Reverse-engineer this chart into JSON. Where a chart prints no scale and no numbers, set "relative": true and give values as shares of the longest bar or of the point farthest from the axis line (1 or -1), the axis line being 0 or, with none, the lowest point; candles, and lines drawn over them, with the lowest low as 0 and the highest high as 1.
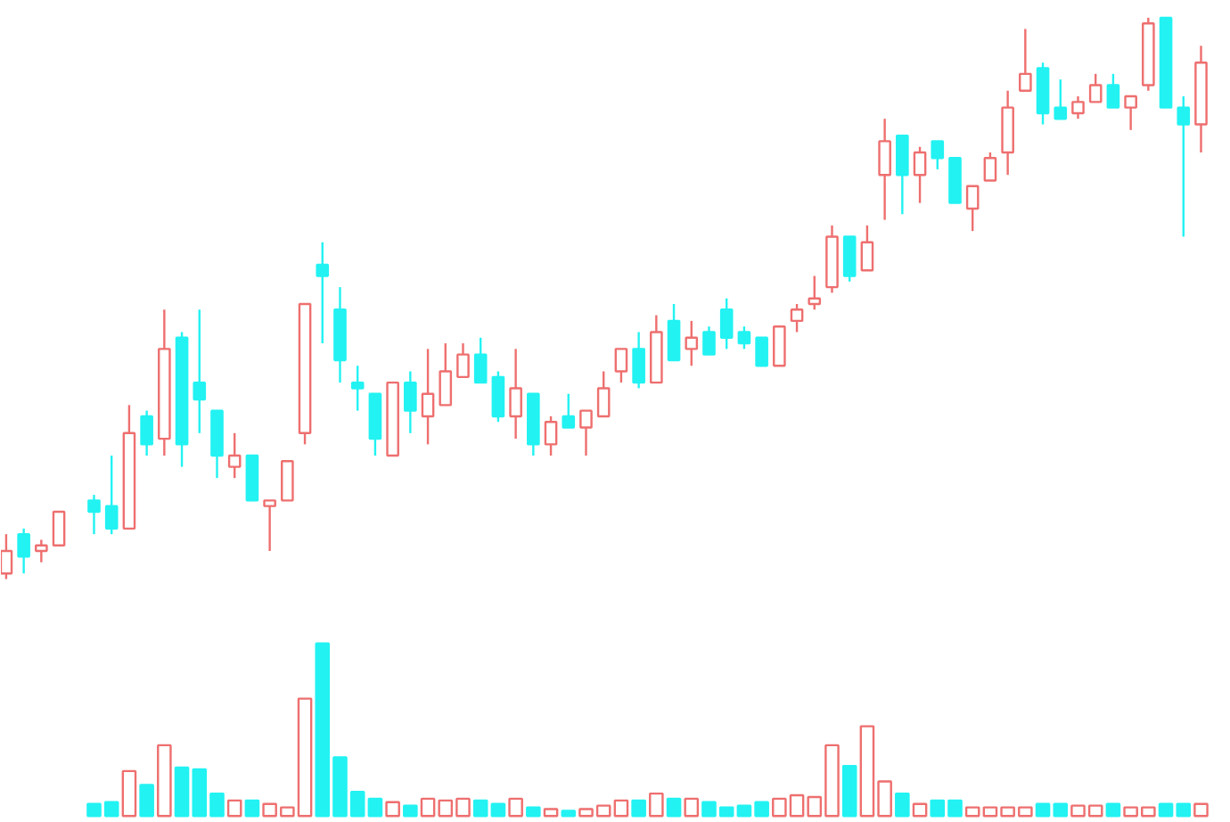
{
  "chart_data": [
    {
      "type": "candlestick",
      "relative": true,
      "categories": [
        null,
        null,
        null,
        null,
        null,
        null,
        null,
        null,
        null,
        null,
        null,
        null,
        null,
        null,
        null,
        null,
        null,
        null,
        null,
        null,
        null,
        null,
        null,
        null,
        null,
        null,
        null,
        null,
        null,
        null,
        null,
        null,
        null,
        null,
        null,
        null,
        null,
        null,
        null,
        null,
        null,
        null,
        null,
        null,
        null,
        null,
        null,
        null,
        null,
        null,
        null,
        null,
        null,
        null,
        null,
        null,
        null,
        null,
        null,
        null,
        null,
        null,
        null,
        null,
        null,
        null,
        null,
        null,
        null
      ],
      "ohlc": [
        [
          0.01,
          0.08,
          0,
          0.05
        ],
        [
          0.08,
          0.09,
          0.01,
          0.04
        ],
        [
          0.05,
          0.07,
          0.03,
          0.06
        ],
        [
          0.06,
          0.12,
          0.06,
          0.12
        ],
        null,
        [
          0.14,
          0.15,
          0.08,
          0.12
        ],
        [
          0.13,
          0.22,
          0.08,
          0.09
        ],
        [
          0.09,
          0.31,
          0.09,
          0.26
        ],
        [
          0.29,
          0.3,
          0.22,
          0.24
        ],
        [
          0.25,
          0.48,
          0.22,
          0.41
        ],
        [
          0.43,
          0.44,
          0.2,
          0.24
        ],
        [
          0.35,
          0.48,
          0.26,
          0.32
        ],
        [
          0.3,
          0.3,
          0.18,
          0.22
        ],
        [
          0.2,
          0.26,
          0.18,
          0.22
        ],
        [
          0.22,
          0.22,
          0.14,
          0.14
        ],
        [
          0.13,
          0.14,
          0.05,
          0.14
        ],
        [
          0.14,
          0.21,
          0.14,
          0.21
        ],
        [
          0.26,
          0.49,
          0.24,
          0.49
        ],
        [
          0.56,
          0.6,
          0.42,
          0.54
        ],
        [
          0.48,
          0.52,
          0.35,
          0.39
        ],
        [
          0.35,
          0.38,
          0.3,
          0.34
        ],
        [
          0.33,
          0.33,
          0.22,
          0.25
        ],
        [
          0.22,
          0.35,
          0.22,
          0.35
        ],
        [
          0.35,
          0.37,
          0.26,
          0.3
        ],
        [
          0.29,
          0.41,
          0.24,
          0.33
        ],
        [
          0.31,
          0.42,
          0.31,
          0.37
        ],
        [
          0.36,
          0.42,
          0.36,
          0.4
        ],
        [
          0.4,
          0.43,
          0.35,
          0.35
        ],
        [
          0.36,
          0.37,
          0.28,
          0.29
        ],
        [
          0.29,
          0.41,
          0.25,
          0.34
        ],
        [
          0.33,
          0.33,
          0.22,
          0.24
        ],
        [
          0.24,
          0.29,
          0.22,
          0.28
        ],
        [
          0.29,
          0.33,
          0.27,
          0.27
        ],
        [
          0.27,
          0.3,
          0.22,
          0.3
        ],
        [
          0.29,
          0.37,
          0.29,
          0.34
        ],
        [
          0.37,
          0.41,
          0.35,
          0.41
        ],
        [
          0.41,
          0.44,
          0.34,
          0.35
        ],
        [
          0.35,
          0.47,
          0.35,
          0.44
        ],
        [
          0.46,
          0.49,
          0.39,
          0.39
        ],
        [
          0.41,
          0.46,
          0.38,
          0.43
        ],
        [
          0.44,
          0.45,
          0.4,
          0.4
        ],
        [
          0.48,
          0.5,
          0.41,
          0.43
        ],
        [
          0.44,
          0.45,
          0.41,
          0.42
        ],
        [
          0.43,
          0.43,
          0.38,
          0.38
        ],
        [
          0.38,
          0.45,
          0.38,
          0.45
        ],
        [
          0.46,
          0.49,
          0.44,
          0.48
        ],
        [
          0.49,
          0.54,
          0.48,
          0.5
        ],
        [
          0.52,
          0.63,
          0.51,
          0.61
        ],
        [
          0.61,
          0.61,
          0.53,
          0.54
        ],
        [
          0.55,
          0.63,
          0.55,
          0.6
        ],
        [
          0.72,
          0.82,
          0.64,
          0.78
        ],
        [
          0.79,
          0.79,
          0.65,
          0.72
        ],
        [
          0.72,
          0.77,
          0.67,
          0.76
        ],
        [
          0.78,
          0.78,
          0.73,
          0.75
        ],
        [
          0.75,
          0.75,
          0.67,
          0.67
        ],
        [
          0.66,
          0.7,
          0.62,
          0.7
        ],
        [
          0.71,
          0.76,
          0.71,
          0.75
        ],
        [
          0.76,
          0.87,
          0.72,
          0.84
        ],
        [
          0.87,
          0.98,
          0.87,
          0.9
        ],
        [
          0.91,
          0.92,
          0.81,
          0.83
        ],
        [
          0.84,
          0.89,
          0.82,
          0.82
        ],
        [
          0.83,
          0.86,
          0.82,
          0.85
        ],
        [
          0.85,
          0.9,
          0.85,
          0.88
        ],
        [
          0.88,
          0.9,
          0.84,
          0.84
        ],
        [
          0.84,
          0.86,
          0.8,
          0.86
        ],
        [
          0.88,
          1,
          0.87,
          0.99
        ],
        [
          1,
          1,
          0.84,
          0.84
        ],
        [
          0.84,
          0.86,
          0.61,
          0.81
        ],
        [
          0.81,
          0.95,
          0.76,
          0.92
        ]
      ],
      "colors": [
        "#ee6f6f",
        "#22f2f2",
        "#ee6f6f",
        "#ee6f6f",
        "#ee6f6f",
        "#22f2f2",
        "#22f2f2",
        "#ee6f6f",
        "#22f2f2",
        "#ee6f6f",
        "#22f2f2",
        "#22f2f2",
        "#22f2f2",
        "#ee6f6f",
        "#22f2f2",
        "#ee6f6f",
        "#ee6f6f",
        "#ee6f6f",
        "#22f2f2",
        "#22f2f2",
        "#22f2f2",
        "#22f2f2",
        "#ee6f6f",
        "#22f2f2",
        "#ee6f6f",
        "#ee6f6f",
        "#ee6f6f",
        "#22f2f2",
        "#22f2f2",
        "#ee6f6f",
        "#22f2f2",
        "#ee6f6f",
        "#22f2f2",
        "#ee6f6f",
        "#ee6f6f",
        "#ee6f6f",
        "#22f2f2",
        "#ee6f6f",
        "#22f2f2",
        "#ee6f6f",
        "#22f2f2",
        "#22f2f2",
        "#22f2f2",
        "#22f2f2",
        "#ee6f6f",
        "#ee6f6f",
        "#ee6f6f",
        "#ee6f6f",
        "#22f2f2",
        "#ee6f6f",
        "#ee6f6f",
        "#22f2f2",
        "#ee6f6f",
        "#22f2f2",
        "#22f2f2",
        "#ee6f6f",
        "#ee6f6f",
        "#ee6f6f",
        "#ee6f6f",
        "#22f2f2",
        "#22f2f2",
        "#ee6f6f",
        "#ee6f6f",
        "#22f2f2",
        "#ee6f6f",
        "#ee6f6f",
        "#22f2f2",
        "#22f2f2",
        "#ee6f6f"
      ]
    },
    {
      "type": "bar",
      "relative": true,
      "categories": [
        null,
        null,
        null,
        null,
        null,
        null,
        null,
        null,
        null,
        null,
        null,
        null,
        null,
        null,
        null,
        null,
        null,
        null,
        null,
        null,
        null,
        null,
        null,
        null,
        null,
        null,
        null,
        null,
        null,
        null,
        null,
        null,
        null,
        null,
        null,
        null,
        null,
        null,
        null,
        null,
        null,
        null,
        null,
        null,
        null,
        null,
        null,
        null,
        null,
        null,
        null,
        null,
        null,
        null,
        null,
        null,
        null,
        null,
        null,
        null,
        null,
        null,
        null,
        null,
        null,
        null,
        null,
        null,
        null
      ],
      "values": [
        null,
        null,
        null,
        null,
        null,
        0.07,
        0.08,
        0.26,
        0.18,
        0.41,
        0.28,
        0.27,
        0.13,
        0.09,
        0.09,
        0.07,
        0.05,
        0.68,
        1,
        0.34,
        0.14,
        0.1,
        0.08,
        0.06,
        0.1,
        0.09,
        0.1,
        0.09,
        0.07,
        0.1,
        0.05,
        0.04,
        0.03,
        0.04,
        0.06,
        0.09,
        0.09,
        0.13,
        0.1,
        0.1,
        0.08,
        0.05,
        0.06,
        0.08,
        0.1,
        0.12,
        0.11,
        0.41,
        0.29,
        0.52,
        0.2,
        0.13,
        0.07,
        0.09,
        0.09,
        0.05,
        0.05,
        0.05,
        0.05,
        0.07,
        0.07,
        0.06,
        0.06,
        0.07,
        0.05,
        0.05,
        0.07,
        0.07,
        0.07
      ],
      "colors": [
        "#ee6f6f",
        "#22f2f2",
        "#ee6f6f",
        "#ee6f6f",
        "#ee6f6f",
        "#22f2f2",
        "#22f2f2",
        "#ee6f6f",
        "#22f2f2",
        "#ee6f6f",
        "#22f2f2",
        "#22f2f2",
        "#22f2f2",
        "#ee6f6f",
        "#22f2f2",
        "#ee6f6f",
        "#ee6f6f",
        "#ee6f6f",
        "#22f2f2",
        "#22f2f2",
        "#22f2f2",
        "#22f2f2",
        "#ee6f6f",
        "#22f2f2",
        "#ee6f6f",
        "#ee6f6f",
        "#ee6f6f",
        "#22f2f2",
        "#22f2f2",
        "#ee6f6f",
        "#22f2f2",
        "#ee6f6f",
        "#22f2f2",
        "#ee6f6f",
        "#ee6f6f",
        "#ee6f6f",
        "#22f2f2",
        "#ee6f6f",
        "#22f2f2",
        "#ee6f6f",
        "#22f2f2",
        "#22f2f2",
        "#22f2f2",
        "#22f2f2",
        "#ee6f6f",
        "#ee6f6f",
        "#ee6f6f",
        "#ee6f6f",
        "#22f2f2",
        "#ee6f6f",
        "#ee6f6f",
        "#22f2f2",
        "#ee6f6f",
        "#22f2f2",
        "#22f2f2",
        "#ee6f6f",
        "#ee6f6f",
        "#ee6f6f",
        "#ee6f6f",
        "#22f2f2",
        "#22f2f2",
        "#ee6f6f",
        "#ee6f6f",
        "#22f2f2",
        "#ee6f6f",
        "#ee6f6f",
        "#22f2f2",
        "#22f2f2",
        "#ee6f6f"
      ]
    }
  ]
}
